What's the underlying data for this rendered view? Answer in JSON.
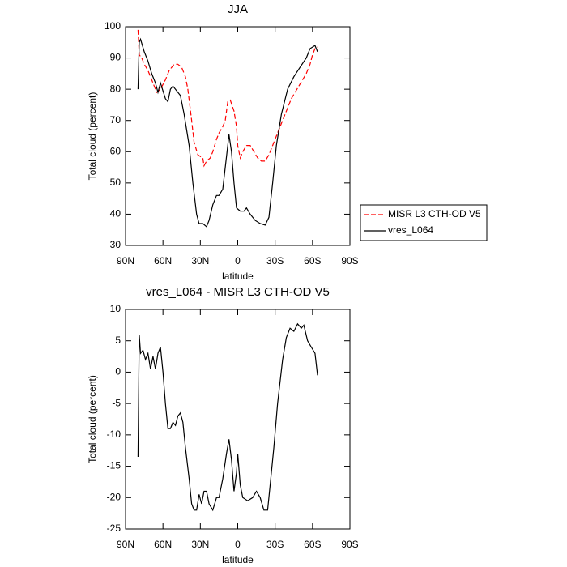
{
  "chart_data": [
    {
      "type": "line",
      "title": "JJA",
      "xlabel": "latitude",
      "ylabel": "Total cloud (percent)",
      "xlim": [
        90,
        -90
      ],
      "xticks": [
        {
          "value": 90,
          "label": "90N"
        },
        {
          "value": 60,
          "label": "60N"
        },
        {
          "value": 30,
          "label": "30N"
        },
        0,
        {
          "value": -30,
          "label": "30S"
        },
        {
          "value": -60,
          "label": "60S"
        },
        {
          "value": -90,
          "label": "90S"
        }
      ],
      "ylim": [
        30,
        100
      ],
      "yticks": [
        30,
        40,
        50,
        60,
        70,
        80,
        90,
        100
      ],
      "legend": "outside-right",
      "series": [
        {
          "name": "MISR L3 CTH-OD V5",
          "color": "#ff0000",
          "line_style": "dashed",
          "x": [
            80,
            79,
            77,
            75,
            72,
            70,
            67,
            65,
            62,
            58,
            55,
            51,
            48,
            45,
            42,
            40,
            37,
            35,
            32,
            30,
            28,
            27,
            25,
            22,
            20,
            17,
            15,
            12,
            10,
            8,
            6,
            3,
            1,
            0,
            -2,
            -4,
            -7,
            -10,
            -13,
            -16,
            -19,
            -22,
            -25,
            -28,
            -31,
            -34,
            -37,
            -40,
            -43,
            -46,
            -49,
            -52,
            -55,
            -58,
            -60,
            -62,
            -64
          ],
          "values": [
            99,
            91,
            90,
            88,
            86,
            84,
            81,
            79,
            80,
            83,
            86,
            88,
            88,
            87,
            84,
            80,
            70,
            63,
            59,
            58.5,
            58,
            55.5,
            57,
            58,
            60,
            64,
            66,
            68,
            70,
            76,
            76.5,
            73,
            68,
            62,
            58,
            60,
            62,
            62,
            60,
            58,
            57,
            57,
            59,
            62,
            65,
            68,
            71,
            74,
            77,
            79,
            81,
            83,
            85,
            88,
            91,
            93,
            93.5
          ]
        },
        {
          "name": "vres_L064",
          "color": "#000000",
          "line_style": "solid",
          "x": [
            80,
            79,
            78,
            75,
            72,
            69,
            66,
            64,
            62,
            58,
            56,
            54,
            52,
            48,
            46,
            43,
            39,
            36,
            33,
            31,
            28,
            25,
            23,
            20,
            17,
            15,
            12,
            10,
            8,
            7,
            5,
            3,
            1,
            -2,
            -5,
            -7,
            -10,
            -14,
            -18,
            -22,
            -25,
            -28,
            -31,
            -35,
            -40,
            -45,
            -50,
            -55,
            -58,
            -62,
            -64
          ],
          "values": [
            80,
            95,
            96,
            92,
            89,
            85,
            82,
            79,
            82,
            77,
            76,
            80,
            81,
            79,
            78,
            72,
            62,
            50,
            40,
            37,
            37,
            36,
            38,
            43,
            46,
            46,
            48,
            55,
            62,
            65.5,
            60,
            50,
            42,
            41,
            41,
            42,
            40,
            38,
            37,
            36.5,
            39,
            50,
            62,
            72,
            80,
            84,
            87,
            90,
            93,
            94,
            92
          ]
        }
      ]
    },
    {
      "type": "line",
      "title": "vres_L064 - MISR L3 CTH-OD V5",
      "xlabel": "latitude",
      "ylabel": "Total cloud (percent)",
      "xlim": [
        90,
        -90
      ],
      "xticks": [
        {
          "value": 90,
          "label": "90N"
        },
        {
          "value": 60,
          "label": "60N"
        },
        {
          "value": 30,
          "label": "30N"
        },
        0,
        {
          "value": -30,
          "label": "30S"
        },
        {
          "value": -60,
          "label": "60S"
        },
        {
          "value": -90,
          "label": "90S"
        }
      ],
      "ylim": [
        -25,
        10
      ],
      "yticks": [
        -25,
        -20,
        -15,
        -10,
        -5,
        0,
        5,
        10
      ],
      "series": [
        {
          "color": "#000000",
          "line_style": "solid",
          "x": [
            80,
            79,
            78,
            76,
            74,
            72,
            70,
            68,
            66,
            64,
            62,
            60,
            58,
            56,
            54,
            52,
            50,
            48,
            46,
            44,
            42,
            39,
            37,
            35,
            33,
            31,
            29,
            27,
            25,
            23,
            20,
            17,
            15,
            12,
            9,
            7,
            5,
            3,
            1,
            0,
            -2,
            -4,
            -8,
            -12,
            -15,
            -18,
            -21,
            -24,
            -26,
            -29,
            -32,
            -36,
            -39,
            -42,
            -45,
            -48,
            -51,
            -53,
            -56,
            -59,
            -62,
            -64
          ],
          "values": [
            -13.5,
            6,
            3,
            3.5,
            2,
            3,
            0.5,
            2.5,
            0.5,
            3,
            4,
            0,
            -5,
            -9,
            -9,
            -8,
            -8.5,
            -7,
            -6.5,
            -8,
            -12,
            -17,
            -21,
            -22,
            -22,
            -19.5,
            -21,
            -19,
            -19,
            -21,
            -22,
            -20,
            -20,
            -17,
            -13,
            -10.7,
            -14,
            -19,
            -16,
            -13,
            -18,
            -20,
            -20.5,
            -20,
            -19,
            -20,
            -22,
            -22,
            -18,
            -12,
            -5,
            2,
            5.5,
            7,
            6.5,
            7.7,
            7,
            7.5,
            5,
            4,
            3,
            -0.5
          ]
        }
      ]
    }
  ]
}
